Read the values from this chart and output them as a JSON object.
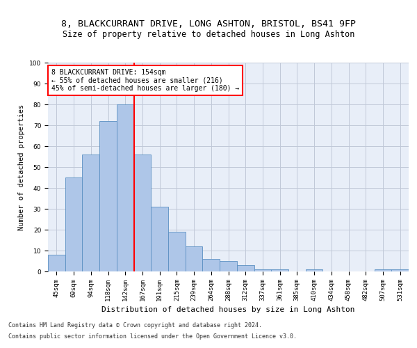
{
  "title1": "8, BLACKCURRANT DRIVE, LONG ASHTON, BRISTOL, BS41 9FP",
  "title2": "Size of property relative to detached houses in Long Ashton",
  "xlabel": "Distribution of detached houses by size in Long Ashton",
  "ylabel": "Number of detached properties",
  "bins": [
    "45sqm",
    "69sqm",
    "94sqm",
    "118sqm",
    "142sqm",
    "167sqm",
    "191sqm",
    "215sqm",
    "239sqm",
    "264sqm",
    "288sqm",
    "312sqm",
    "337sqm",
    "361sqm",
    "385sqm",
    "410sqm",
    "434sqm",
    "458sqm",
    "482sqm",
    "507sqm",
    "531sqm"
  ],
  "heights": [
    8,
    45,
    56,
    72,
    80,
    56,
    31,
    19,
    12,
    6,
    5,
    3,
    1,
    1,
    0,
    1,
    0,
    0,
    0,
    1,
    1
  ],
  "bar_color": "#aec6e8",
  "bar_edge_color": "#5a8fc2",
  "redline_x": 4.5,
  "annotation_text": "8 BLACKCURRANT DRIVE: 154sqm\n← 55% of detached houses are smaller (216)\n45% of semi-detached houses are larger (180) →",
  "annotation_box_color": "white",
  "annotation_box_edge": "red",
  "ylim": [
    0,
    100
  ],
  "yticks": [
    0,
    10,
    20,
    30,
    40,
    50,
    60,
    70,
    80,
    90,
    100
  ],
  "grid_color": "#c0c8d8",
  "bg_color": "#e8eef8",
  "footer1": "Contains HM Land Registry data © Crown copyright and database right 2024.",
  "footer2": "Contains public sector information licensed under the Open Government Licence v3.0.",
  "title1_fontsize": 9.5,
  "title2_fontsize": 8.5,
  "xlabel_fontsize": 8,
  "ylabel_fontsize": 7.5,
  "tick_fontsize": 6.5,
  "annot_fontsize": 7,
  "footer_fontsize": 6
}
